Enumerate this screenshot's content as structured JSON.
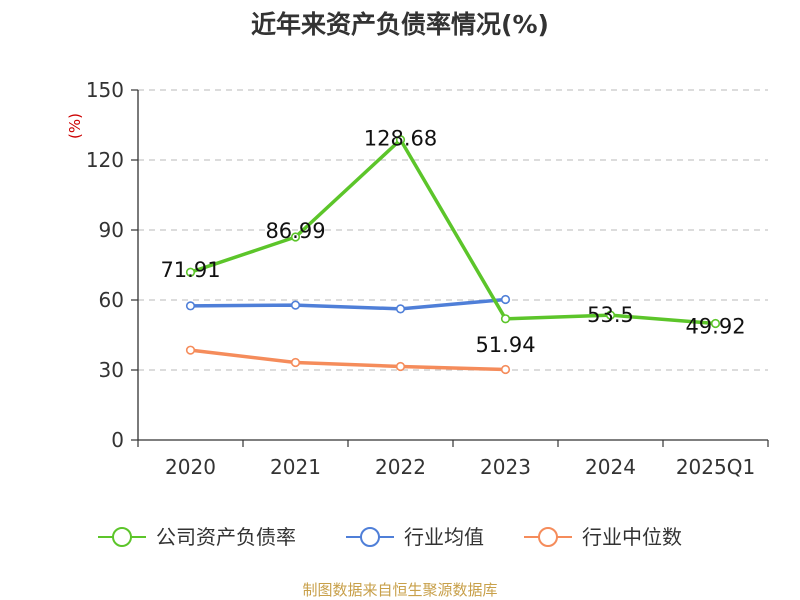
{
  "chart_data": {
    "type": "line",
    "title": "近年来资产负债率情况(%)",
    "ylabel": "(%)",
    "categories": [
      "2020",
      "2021",
      "2022",
      "2023",
      "2024",
      "2025Q1"
    ],
    "ylim": [
      0,
      150
    ],
    "yticks": [
      "0",
      "30",
      "60",
      "90",
      "120",
      "150"
    ],
    "grid": true,
    "legend_position": "bottom",
    "series": [
      {
        "name": "公司资产负债率",
        "color": "#5cc52a",
        "values": [
          71.91,
          86.99,
          128.68,
          51.94,
          53.5,
          49.92
        ],
        "labels": [
          "71.91",
          "86.99",
          "128.68",
          "51.94",
          "53.5",
          "49.92"
        ]
      },
      {
        "name": "行业均值",
        "color": "#4f7fd8",
        "values": [
          57.5,
          57.8,
          56.2,
          60.2,
          null,
          null
        ]
      },
      {
        "name": "行业中位数",
        "color": "#f58c5b",
        "values": [
          38.5,
          33.2,
          31.5,
          30.2,
          null,
          null
        ]
      }
    ],
    "source": "制图数据来自恒生聚源数据库"
  }
}
